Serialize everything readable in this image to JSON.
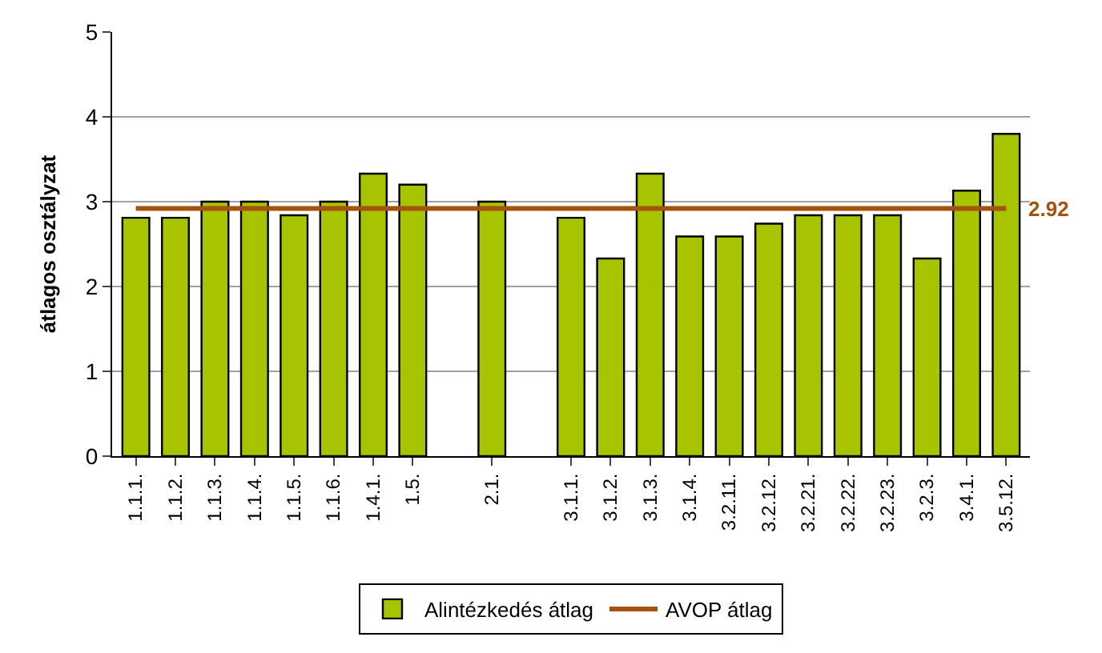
{
  "chart_data": {
    "type": "bar",
    "ylabel": "átlagos osztályzat",
    "categories": [
      "1.1.1.",
      "1.1.2.",
      "1.1.3.",
      "1.1.4.",
      "1.1.5.",
      "1.1.6.",
      "1.4.1.",
      "1.5.",
      null,
      "2.1.",
      null,
      "3.1.1.",
      "3.1.2.",
      "3.1.3.",
      "3.1.4.",
      "3.2.11.",
      "3.2.12.",
      "3.2.21.",
      "3.2.22.",
      "3.2.23.",
      "3.2.3.",
      "3.4.1.",
      "3.5.12."
    ],
    "series": [
      {
        "name": "Alintézkedés átlag",
        "color": "#a8c400",
        "values": [
          2.81,
          2.81,
          3.0,
          3.0,
          2.84,
          3.0,
          3.33,
          3.2,
          null,
          3.0,
          null,
          2.81,
          2.33,
          3.33,
          2.59,
          2.59,
          2.74,
          2.84,
          2.84,
          2.84,
          2.33,
          3.13,
          3.8
        ]
      },
      {
        "name": "AVOP átlag",
        "type": "line",
        "color": "#a5520f",
        "values": [
          2.92,
          2.92,
          2.92,
          2.92,
          2.92,
          2.92,
          2.92,
          2.92,
          2.92,
          2.92,
          2.92,
          2.92,
          2.92,
          2.92,
          2.92,
          2.92,
          2.92,
          2.92,
          2.92,
          2.92,
          2.92,
          2.92,
          2.92
        ],
        "value_labels": [
          null,
          null,
          null,
          null,
          null,
          null,
          null,
          null,
          null,
          null,
          null,
          null,
          null,
          null,
          null,
          null,
          null,
          null,
          null,
          null,
          null,
          null,
          "2.92"
        ]
      }
    ],
    "ylim": [
      0,
      5
    ],
    "yticks": [
      0,
      1,
      2,
      3,
      4,
      5
    ],
    "grid": "y",
    "legend": "bottom",
    "marker": "none"
  }
}
